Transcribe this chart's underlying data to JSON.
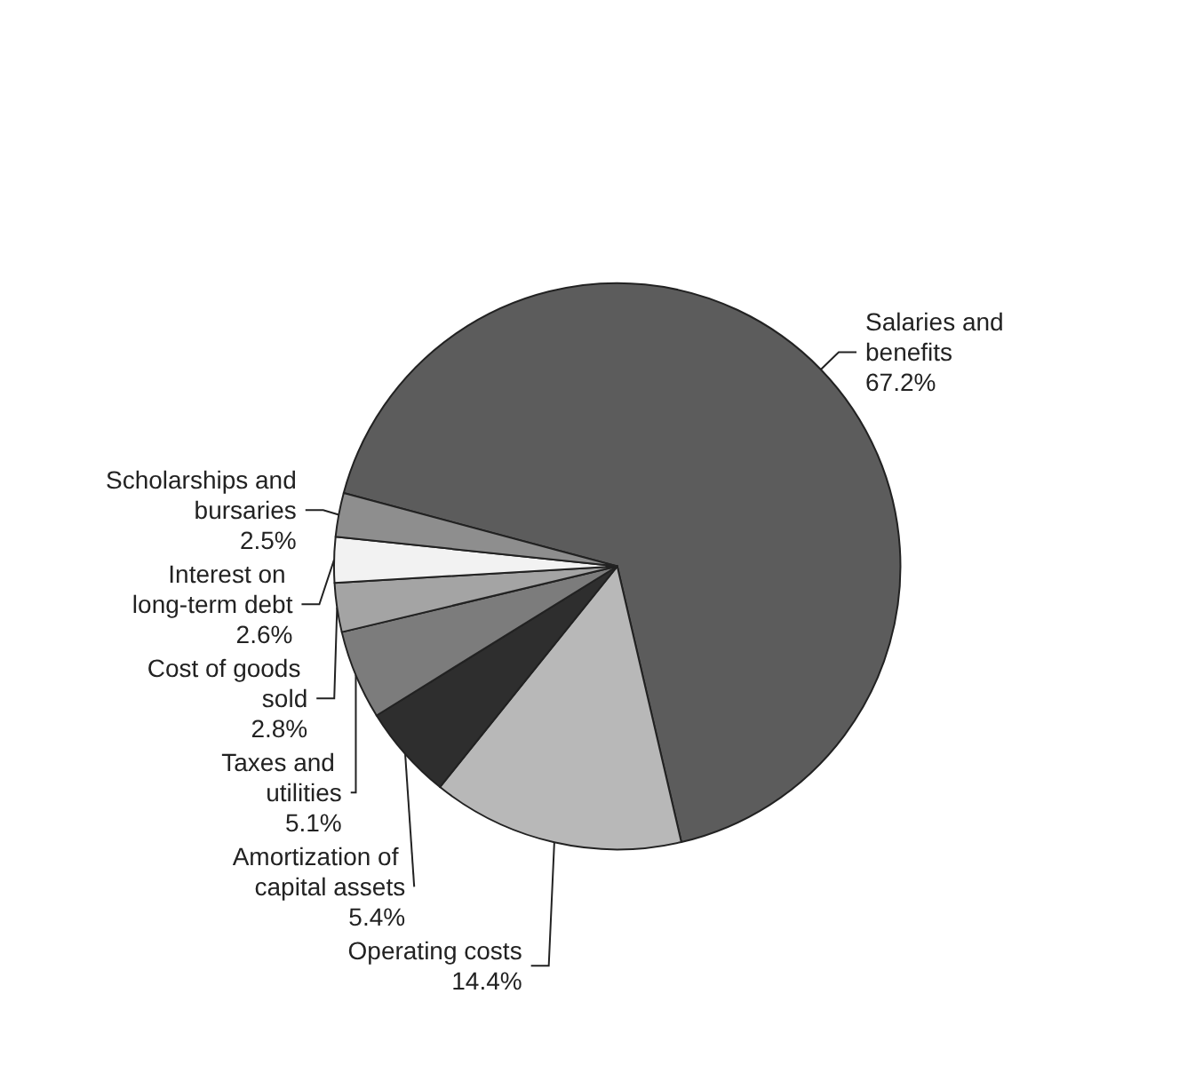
{
  "chart_data": {
    "type": "pie",
    "categories": [
      "Salaries and benefits",
      "Operating costs",
      "Amortization of capital assets",
      "Taxes and utilities",
      "Cost of goods sold",
      "Interest on long-term debt",
      "Scholarships and bursaries"
    ],
    "values": [
      67.2,
      14.4,
      5.4,
      5.1,
      2.8,
      2.6,
      2.5
    ],
    "value_labels": [
      "67.2%",
      "14.4%",
      "5.4%",
      "5.1%",
      "2.8%",
      "2.6%",
      "2.5%"
    ],
    "colors": [
      "#5c5c5c",
      "#b8b8b8",
      "#2e2e2e",
      "#7c7c7c",
      "#a4a4a4",
      "#f2f2f2",
      "#8e8e8e"
    ],
    "legend": false
  }
}
